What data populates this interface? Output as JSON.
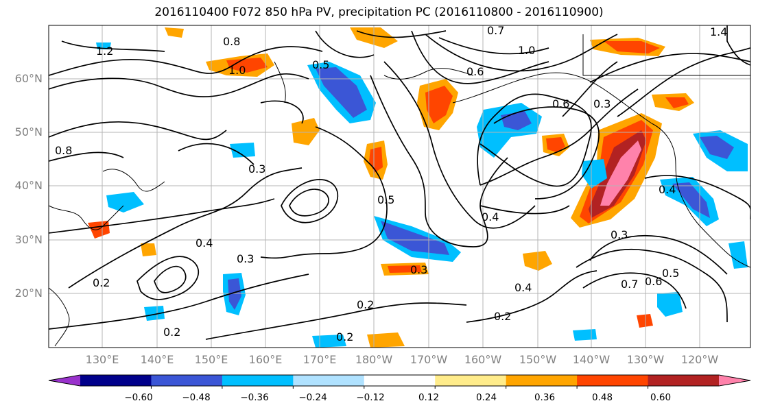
{
  "title": "2016110400 F072 850 hPa PV, precipitation PC (2016110800 - 2016110900)",
  "latitude_labels": [
    "60°N",
    "50°N",
    "40°N",
    "30°N",
    "20°N"
  ],
  "longitude_labels": [
    "130°E",
    "140°E",
    "150°E",
    "160°E",
    "170°E",
    "180°W",
    "170°W",
    "160°W",
    "150°W",
    "140°W",
    "130°W",
    "120°W"
  ],
  "colorbar": {
    "colors": [
      "#9932cc",
      "#00008b",
      "#3b56d6",
      "#00bfff",
      "#b0e2ff",
      "#ffffff",
      "#ffec8b",
      "#ffa500",
      "#ff4500",
      "#b22222",
      "#ff82ab"
    ],
    "ticks": [
      "−0.60",
      "−0.48",
      "−0.36",
      "−0.24",
      "−0.12",
      "0.12",
      "0.24",
      "0.36",
      "0.48",
      "0.60"
    ]
  },
  "contour_labels": [
    "1.2",
    "0.8",
    "1.0",
    "0.7",
    "0.5",
    "0.3",
    "0.6",
    "0.5",
    "0.3",
    "0.2",
    "0.4",
    "0.2",
    "0.3",
    "0.2",
    "0.2",
    "0.4",
    "0.3",
    "0.2",
    "0.6",
    "0.5",
    "0.7",
    "0.4",
    "0.3",
    "1.4",
    "1.0",
    "0.8",
    "0.4",
    "0.6"
  ]
}
